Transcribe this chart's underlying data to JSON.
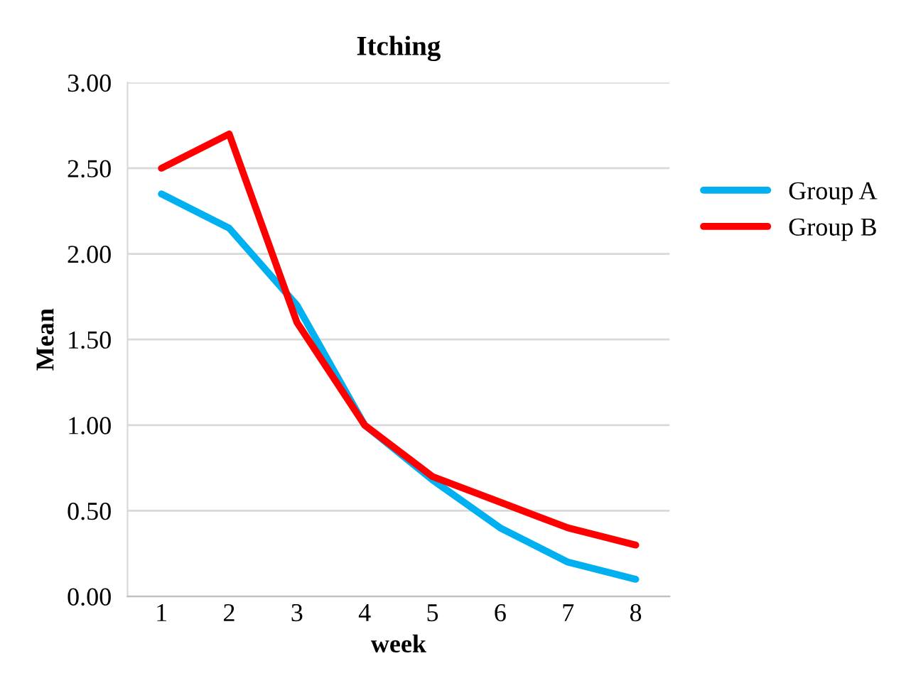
{
  "chart_data": {
    "type": "line",
    "title": "Itching",
    "xlabel": "week",
    "ylabel": "Mean",
    "categories": [
      "1",
      "2",
      "3",
      "4",
      "5",
      "6",
      "7",
      "8"
    ],
    "series": [
      {
        "name": "Group A",
        "color": "#00b0f0",
        "values": [
          2.35,
          2.15,
          1.7,
          1.0,
          0.68,
          0.4,
          0.2,
          0.1
        ]
      },
      {
        "name": "Group B",
        "color": "#ff0000",
        "values": [
          2.5,
          2.7,
          1.6,
          1.0,
          0.7,
          0.55,
          0.4,
          0.3
        ]
      }
    ],
    "ylim": [
      0,
      3
    ],
    "yticks": [
      {
        "value": 0,
        "label": "0.00"
      },
      {
        "value": 0.5,
        "label": "0.50"
      },
      {
        "value": 1,
        "label": "1.00"
      },
      {
        "value": 1.5,
        "label": "1.50"
      },
      {
        "value": 2,
        "label": "2.00"
      },
      {
        "value": 2.5,
        "label": "2.50"
      },
      {
        "value": 3,
        "label": "3.00"
      }
    ],
    "grid": "y",
    "legend": "right",
    "marker": "none",
    "line_style": "solid"
  }
}
